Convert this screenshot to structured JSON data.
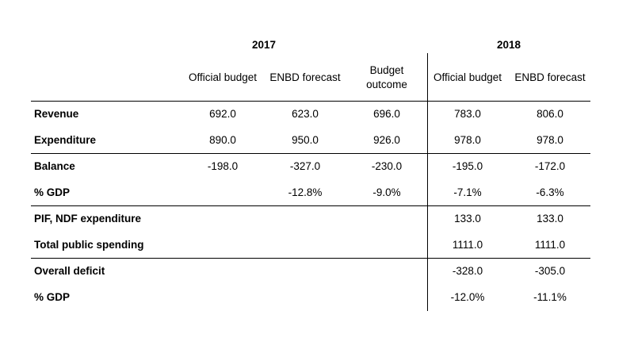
{
  "years": [
    "2017",
    "2018"
  ],
  "columns": [
    "Official budget",
    "ENBD forecast",
    "Budget outcome",
    "Official budget",
    "ENBD forecast"
  ],
  "budget_outcome_lines": [
    "Budget",
    "outcome"
  ],
  "rows": [
    {
      "label": "Revenue",
      "values": [
        "692.0",
        "623.0",
        "696.0",
        "783.0",
        "806.0"
      ]
    },
    {
      "label": "Expenditure",
      "values": [
        "890.0",
        "950.0",
        "926.0",
        "978.0",
        "978.0"
      ]
    },
    {
      "label": "Balance",
      "values": [
        "-198.0",
        "-327.0",
        "-230.0",
        "-195.0",
        "-172.0"
      ]
    },
    {
      "label": "% GDP",
      "values": [
        "",
        "-12.8%",
        "-9.0%",
        "-7.1%",
        "-6.3%"
      ]
    },
    {
      "label": "PIF, NDF expenditure",
      "values": [
        "",
        "",
        "",
        "133.0",
        "133.0"
      ]
    },
    {
      "label": "Total public spending",
      "values": [
        "",
        "",
        "",
        "1111.0",
        "1111.0"
      ]
    },
    {
      "label": "Overall deficit",
      "values": [
        "",
        "",
        "",
        "-328.0",
        "-305.0"
      ]
    },
    {
      "label": "% GDP",
      "values": [
        "",
        "",
        "",
        "-12.0%",
        "-11.1%"
      ]
    }
  ]
}
